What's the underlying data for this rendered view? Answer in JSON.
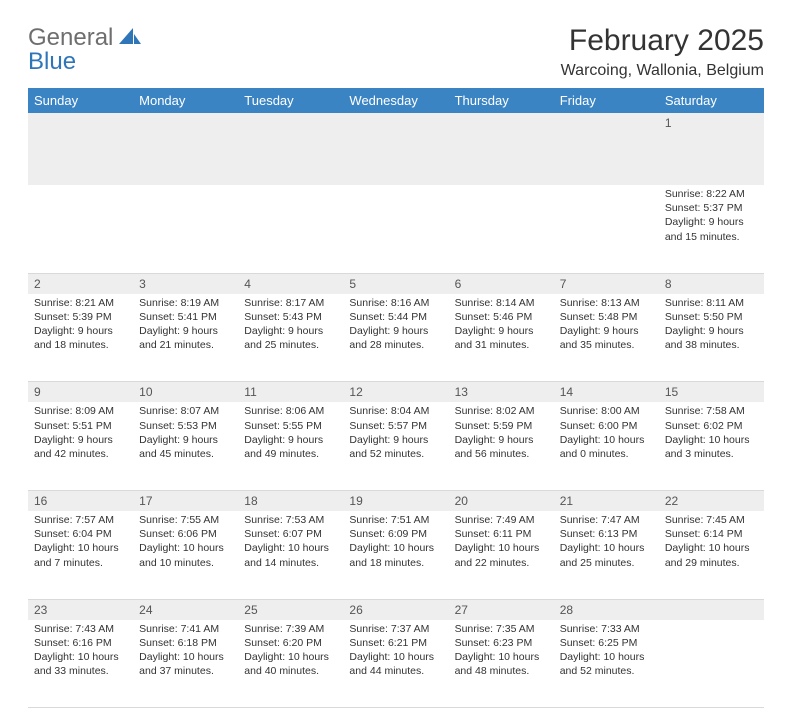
{
  "logo": {
    "part1": "General",
    "part2": "Blue"
  },
  "title": "February 2025",
  "location": "Warcoing, Wallonia, Belgium",
  "colors": {
    "header_bg": "#3b84c4",
    "header_text": "#ffffff",
    "daynum_bg": "#eeeeee",
    "accent": "#2f76b9",
    "logo_gray": "#6e6e6e"
  },
  "day_headers": [
    "Sunday",
    "Monday",
    "Tuesday",
    "Wednesday",
    "Thursday",
    "Friday",
    "Saturday"
  ],
  "weeks": [
    {
      "nums": [
        "",
        "",
        "",
        "",
        "",
        "",
        "1"
      ],
      "cells": [
        null,
        null,
        null,
        null,
        null,
        null,
        {
          "sunrise": "8:22 AM",
          "sunset": "5:37 PM",
          "dl1": "9 hours",
          "dl2": "and 15 minutes."
        }
      ]
    },
    {
      "nums": [
        "2",
        "3",
        "4",
        "5",
        "6",
        "7",
        "8"
      ],
      "cells": [
        {
          "sunrise": "8:21 AM",
          "sunset": "5:39 PM",
          "dl1": "9 hours",
          "dl2": "and 18 minutes."
        },
        {
          "sunrise": "8:19 AM",
          "sunset": "5:41 PM",
          "dl1": "9 hours",
          "dl2": "and 21 minutes."
        },
        {
          "sunrise": "8:17 AM",
          "sunset": "5:43 PM",
          "dl1": "9 hours",
          "dl2": "and 25 minutes."
        },
        {
          "sunrise": "8:16 AM",
          "sunset": "5:44 PM",
          "dl1": "9 hours",
          "dl2": "and 28 minutes."
        },
        {
          "sunrise": "8:14 AM",
          "sunset": "5:46 PM",
          "dl1": "9 hours",
          "dl2": "and 31 minutes."
        },
        {
          "sunrise": "8:13 AM",
          "sunset": "5:48 PM",
          "dl1": "9 hours",
          "dl2": "and 35 minutes."
        },
        {
          "sunrise": "8:11 AM",
          "sunset": "5:50 PM",
          "dl1": "9 hours",
          "dl2": "and 38 minutes."
        }
      ]
    },
    {
      "nums": [
        "9",
        "10",
        "11",
        "12",
        "13",
        "14",
        "15"
      ],
      "cells": [
        {
          "sunrise": "8:09 AM",
          "sunset": "5:51 PM",
          "dl1": "9 hours",
          "dl2": "and 42 minutes."
        },
        {
          "sunrise": "8:07 AM",
          "sunset": "5:53 PM",
          "dl1": "9 hours",
          "dl2": "and 45 minutes."
        },
        {
          "sunrise": "8:06 AM",
          "sunset": "5:55 PM",
          "dl1": "9 hours",
          "dl2": "and 49 minutes."
        },
        {
          "sunrise": "8:04 AM",
          "sunset": "5:57 PM",
          "dl1": "9 hours",
          "dl2": "and 52 minutes."
        },
        {
          "sunrise": "8:02 AM",
          "sunset": "5:59 PM",
          "dl1": "9 hours",
          "dl2": "and 56 minutes."
        },
        {
          "sunrise": "8:00 AM",
          "sunset": "6:00 PM",
          "dl1": "10 hours",
          "dl2": "and 0 minutes."
        },
        {
          "sunrise": "7:58 AM",
          "sunset": "6:02 PM",
          "dl1": "10 hours",
          "dl2": "and 3 minutes."
        }
      ]
    },
    {
      "nums": [
        "16",
        "17",
        "18",
        "19",
        "20",
        "21",
        "22"
      ],
      "cells": [
        {
          "sunrise": "7:57 AM",
          "sunset": "6:04 PM",
          "dl1": "10 hours",
          "dl2": "and 7 minutes."
        },
        {
          "sunrise": "7:55 AM",
          "sunset": "6:06 PM",
          "dl1": "10 hours",
          "dl2": "and 10 minutes."
        },
        {
          "sunrise": "7:53 AM",
          "sunset": "6:07 PM",
          "dl1": "10 hours",
          "dl2": "and 14 minutes."
        },
        {
          "sunrise": "7:51 AM",
          "sunset": "6:09 PM",
          "dl1": "10 hours",
          "dl2": "and 18 minutes."
        },
        {
          "sunrise": "7:49 AM",
          "sunset": "6:11 PM",
          "dl1": "10 hours",
          "dl2": "and 22 minutes."
        },
        {
          "sunrise": "7:47 AM",
          "sunset": "6:13 PM",
          "dl1": "10 hours",
          "dl2": "and 25 minutes."
        },
        {
          "sunrise": "7:45 AM",
          "sunset": "6:14 PM",
          "dl1": "10 hours",
          "dl2": "and 29 minutes."
        }
      ]
    },
    {
      "nums": [
        "23",
        "24",
        "25",
        "26",
        "27",
        "28",
        ""
      ],
      "cells": [
        {
          "sunrise": "7:43 AM",
          "sunset": "6:16 PM",
          "dl1": "10 hours",
          "dl2": "and 33 minutes."
        },
        {
          "sunrise": "7:41 AM",
          "sunset": "6:18 PM",
          "dl1": "10 hours",
          "dl2": "and 37 minutes."
        },
        {
          "sunrise": "7:39 AM",
          "sunset": "6:20 PM",
          "dl1": "10 hours",
          "dl2": "and 40 minutes."
        },
        {
          "sunrise": "7:37 AM",
          "sunset": "6:21 PM",
          "dl1": "10 hours",
          "dl2": "and 44 minutes."
        },
        {
          "sunrise": "7:35 AM",
          "sunset": "6:23 PM",
          "dl1": "10 hours",
          "dl2": "and 48 minutes."
        },
        {
          "sunrise": "7:33 AM",
          "sunset": "6:25 PM",
          "dl1": "10 hours",
          "dl2": "and 52 minutes."
        },
        null
      ]
    }
  ],
  "labels": {
    "sunrise": "Sunrise: ",
    "sunset": "Sunset: ",
    "daylight": "Daylight: "
  }
}
